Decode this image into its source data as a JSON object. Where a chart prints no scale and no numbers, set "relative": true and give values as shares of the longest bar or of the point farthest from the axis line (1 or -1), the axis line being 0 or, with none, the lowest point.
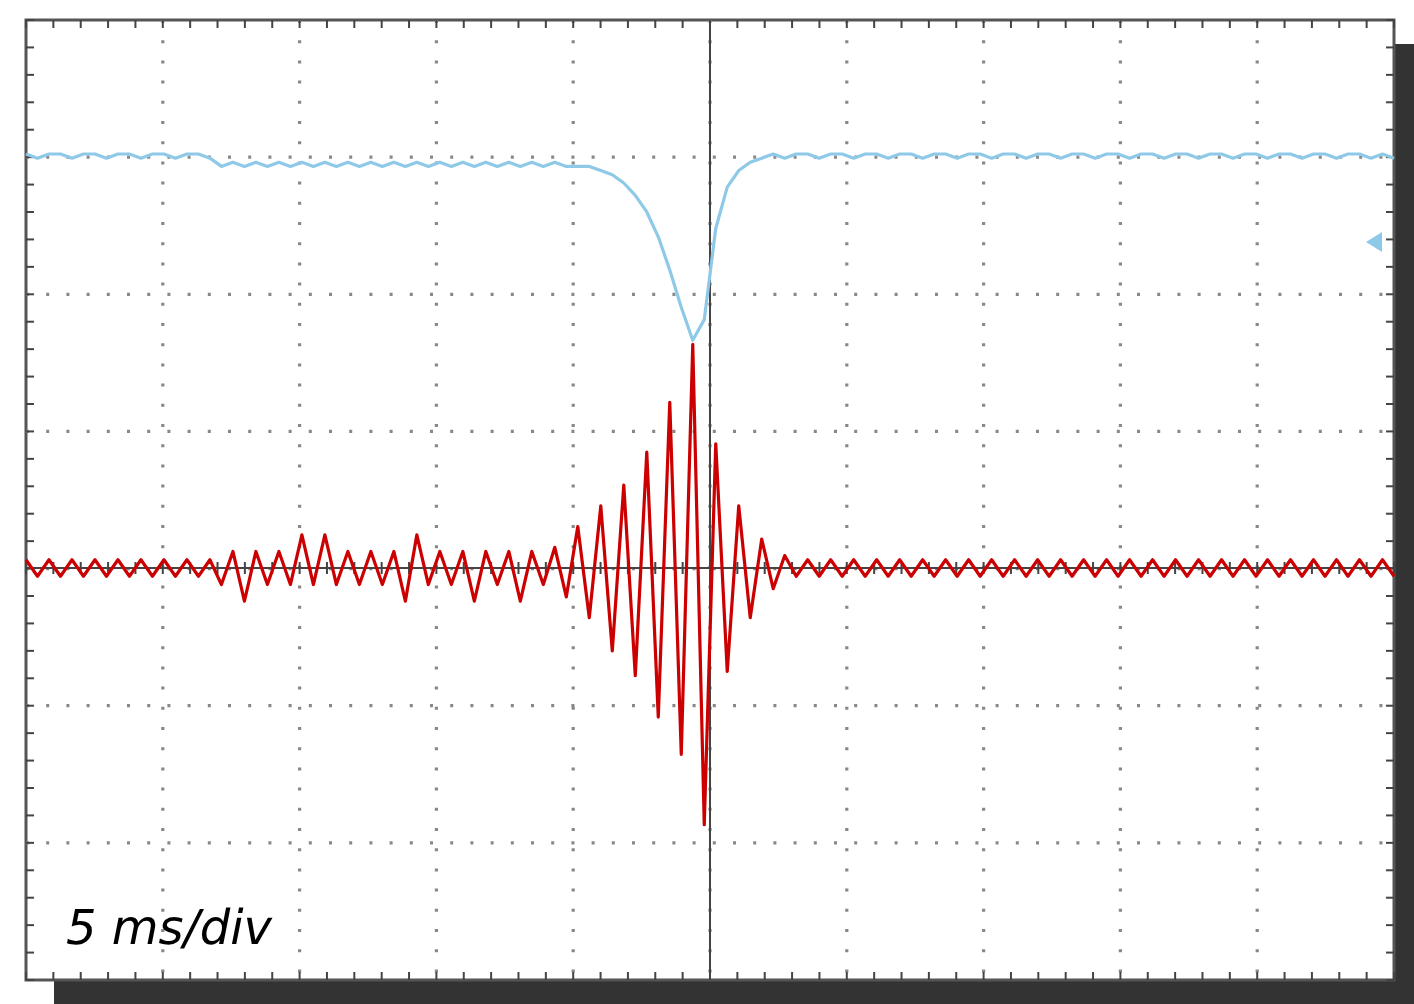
{
  "chart_data": {
    "type": "line",
    "relative": true,
    "grid": true,
    "line_style": "solid",
    "categories": [
      null,
      null,
      null,
      null,
      null,
      null,
      null,
      null,
      null,
      null,
      null,
      null,
      null,
      null,
      null,
      null,
      null,
      null,
      null,
      null,
      null,
      null,
      null,
      null,
      null,
      null,
      null,
      null,
      null,
      null,
      null,
      null,
      null,
      null,
      null,
      null,
      null,
      null,
      null,
      null,
      null,
      null,
      null,
      null,
      null,
      null,
      null,
      null,
      null,
      null,
      null,
      null,
      null,
      null,
      null,
      null,
      null,
      null,
      null,
      null,
      null,
      null,
      null,
      null,
      null,
      null,
      null,
      null,
      null,
      null,
      null,
      null,
      null,
      null,
      null,
      null,
      null,
      null,
      null,
      null,
      null,
      null,
      null,
      null,
      null,
      null,
      null,
      null,
      null,
      null,
      null,
      null,
      null,
      null,
      null,
      null,
      null,
      null,
      null,
      null,
      null,
      null,
      null,
      null,
      null,
      null,
      null,
      null,
      null,
      null,
      null,
      null,
      null,
      null,
      null,
      null,
      null,
      null,
      null,
      null
    ],
    "series": [
      {
        "color": "#8ec9e8",
        "values": [
          1,
          0.99,
          1,
          1,
          0.99,
          1,
          1,
          0.99,
          1,
          1,
          0.99,
          1,
          1,
          0.99,
          1,
          1,
          0.99,
          0.97,
          0.98,
          0.97,
          0.98,
          0.97,
          0.98,
          0.97,
          0.98,
          0.97,
          0.98,
          0.97,
          0.98,
          0.97,
          0.98,
          0.97,
          0.98,
          0.97,
          0.98,
          0.97,
          0.98,
          0.97,
          0.98,
          0.97,
          0.98,
          0.97,
          0.98,
          0.97,
          0.98,
          0.97,
          0.98,
          0.97,
          0.97,
          0.97,
          0.96,
          0.95,
          0.93,
          0.9,
          0.86,
          0.8,
          0.72,
          0.63,
          0.55,
          0.6,
          0.82,
          0.92,
          0.96,
          0.98,
          0.99,
          1,
          0.99,
          1,
          1,
          0.99,
          1,
          1,
          0.99,
          1,
          1,
          0.99,
          1,
          1,
          0.99,
          1,
          1,
          0.99,
          1,
          1,
          0.99,
          1,
          1,
          0.99,
          1,
          1,
          0.99,
          1,
          1,
          0.99,
          1,
          1,
          0.99,
          1,
          1,
          0.99,
          1,
          1,
          0.99,
          1,
          1,
          0.99,
          1,
          1,
          0.99,
          1,
          1,
          0.99,
          1,
          1,
          0.99,
          1,
          1,
          0.99,
          1,
          0.99
        ]
      },
      {
        "color": "#cc0000",
        "values": [
          0.02,
          -0.02,
          0.02,
          -0.02,
          0.02,
          -0.02,
          0.02,
          -0.02,
          0.02,
          -0.02,
          0.02,
          -0.02,
          0.02,
          -0.02,
          0.02,
          -0.02,
          0.02,
          -0.04,
          0.04,
          -0.08,
          0.04,
          -0.04,
          0.04,
          -0.04,
          0.08,
          -0.04,
          0.08,
          -0.04,
          0.04,
          -0.04,
          0.04,
          -0.04,
          0.04,
          -0.08,
          0.08,
          -0.04,
          0.04,
          -0.04,
          0.04,
          -0.08,
          0.04,
          -0.04,
          0.04,
          -0.08,
          0.04,
          -0.04,
          0.05,
          -0.07,
          0.1,
          -0.12,
          0.15,
          -0.2,
          0.2,
          -0.26,
          0.28,
          -0.36,
          0.4,
          -0.45,
          0.54,
          -0.62,
          0.3,
          -0.25,
          0.15,
          -0.12,
          0.07,
          -0.05,
          0.03,
          -0.02,
          0.02,
          -0.02,
          0.02,
          -0.02,
          0.02,
          -0.02,
          0.02,
          -0.02,
          0.02,
          -0.02,
          0.02,
          -0.02,
          0.02,
          -0.02,
          0.02,
          -0.02,
          0.02,
          -0.02,
          0.02,
          -0.02,
          0.02,
          -0.02,
          0.02,
          -0.02,
          0.02,
          -0.02,
          0.02,
          -0.02,
          0.02,
          -0.02,
          0.02,
          -0.02,
          0.02,
          -0.02,
          0.02,
          -0.02,
          0.02,
          -0.02,
          0.02,
          -0.02,
          0.02,
          -0.02,
          0.02,
          -0.02,
          0.02,
          -0.02,
          0.02,
          -0.02,
          0.02,
          -0.02,
          0.02,
          -0.02
        ]
      }
    ],
    "annotations": [
      "5 ms/div"
    ]
  }
}
